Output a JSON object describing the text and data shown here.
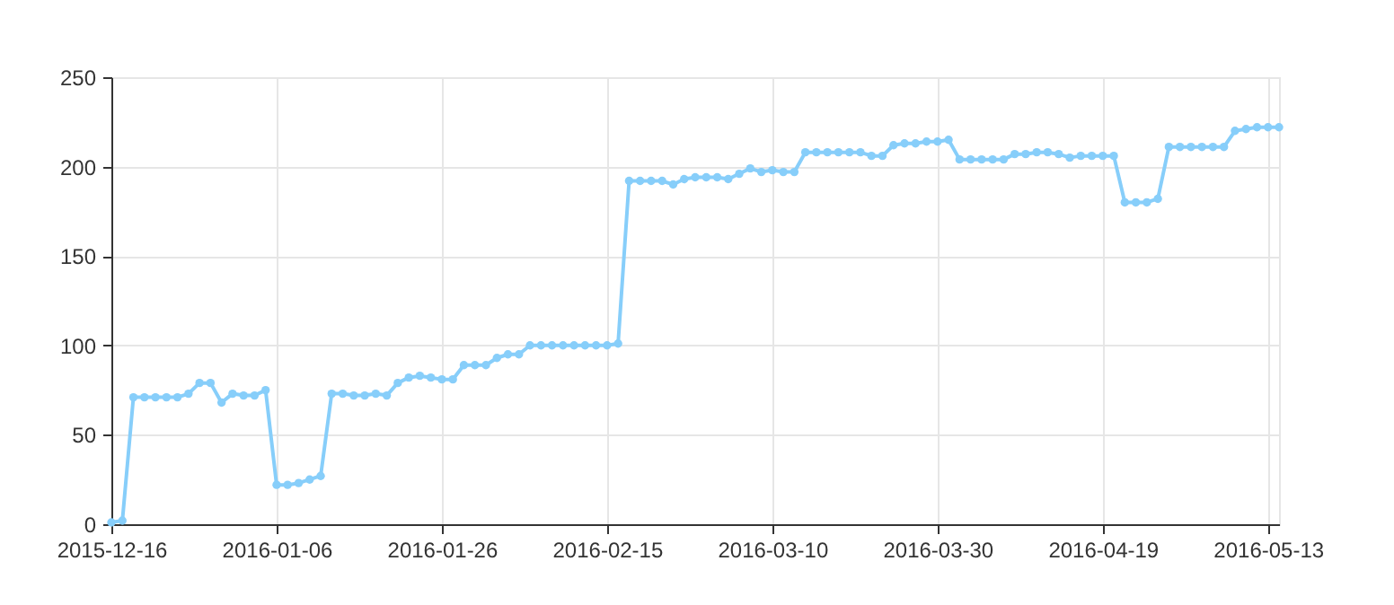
{
  "chart_data": {
    "type": "line",
    "categories": [
      "2015-12-16",
      null,
      null,
      null,
      null,
      null,
      null,
      null,
      null,
      null,
      null,
      null,
      null,
      null,
      null,
      "2016-01-06",
      null,
      null,
      null,
      null,
      null,
      null,
      null,
      null,
      null,
      null,
      null,
      null,
      null,
      null,
      "2016-01-26",
      null,
      null,
      null,
      null,
      null,
      null,
      null,
      null,
      null,
      null,
      null,
      null,
      null,
      null,
      "2016-02-15",
      null,
      null,
      null,
      null,
      null,
      null,
      null,
      null,
      null,
      null,
      null,
      null,
      null,
      null,
      "2016-03-10",
      null,
      null,
      null,
      null,
      null,
      null,
      null,
      null,
      null,
      null,
      null,
      null,
      null,
      null,
      "2016-03-30",
      null,
      null,
      null,
      null,
      null,
      null,
      null,
      null,
      null,
      null,
      null,
      null,
      null,
      null,
      "2016-04-19",
      null,
      null,
      null,
      null,
      null,
      null,
      null,
      null,
      null,
      null,
      null,
      null,
      null,
      null,
      "2016-05-13",
      null
    ],
    "series": [
      {
        "color": "#87cefa",
        "values": [
          1,
          2,
          71,
          71,
          71,
          71,
          71,
          73,
          79,
          79,
          68,
          73,
          72,
          72,
          75,
          22,
          22,
          23,
          25,
          27,
          73,
          73,
          72,
          72,
          73,
          72,
          79,
          82,
          83,
          82,
          81,
          81,
          89,
          89,
          89,
          93,
          95,
          95,
          100,
          100,
          100,
          100,
          100,
          100,
          100,
          100,
          101,
          192,
          192,
          192,
          192,
          190,
          193,
          194,
          194,
          194,
          193,
          196,
          199,
          197,
          198,
          197,
          197,
          208,
          208,
          208,
          208,
          208,
          208,
          206,
          206,
          212,
          213,
          213,
          214,
          214,
          215,
          204,
          204,
          204,
          204,
          204,
          207,
          207,
          208,
          208,
          207,
          205,
          206,
          206,
          206,
          206,
          180,
          180,
          180,
          182,
          211,
          211,
          211,
          211,
          211,
          211,
          220,
          221,
          222,
          222,
          222
        ]
      }
    ],
    "ylim": [
      0,
      250
    ],
    "yticks": [
      0,
      50,
      100,
      150,
      200,
      250
    ],
    "grid": true,
    "marker": "circle",
    "line_style": "solid"
  }
}
